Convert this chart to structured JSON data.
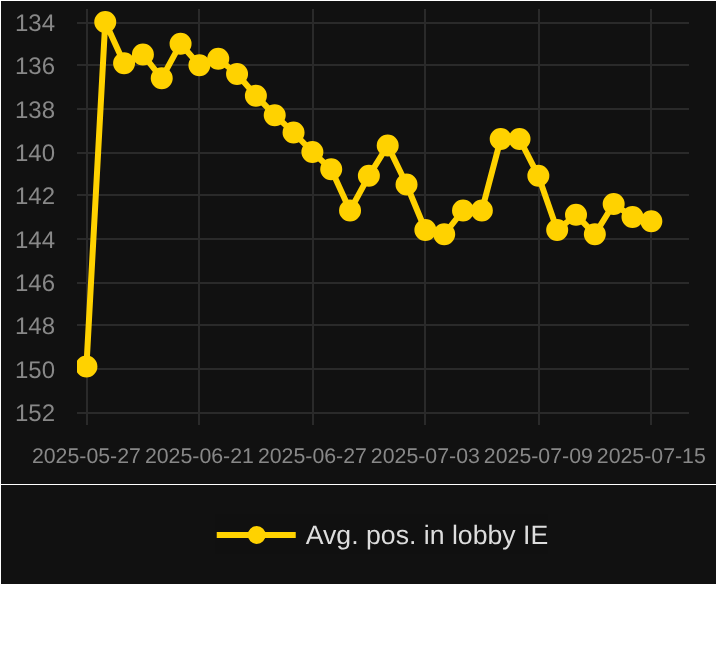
{
  "chart_data": {
    "type": "line",
    "categories": [
      "2025-05-27",
      null,
      null,
      null,
      null,
      null,
      "2025-06-21",
      null,
      null,
      null,
      null,
      null,
      "2025-06-27",
      null,
      null,
      null,
      null,
      null,
      "2025-07-03",
      null,
      null,
      null,
      null,
      null,
      "2025-07-09",
      null,
      null,
      null,
      null,
      null,
      "2025-07-15"
    ],
    "series": [
      {
        "name": "Avg. pos. in lobby IE",
        "color": "#ffd200",
        "values": [
          149.9,
          134.0,
          135.9,
          135.5,
          136.6,
          135.0,
          136.0,
          135.7,
          136.4,
          137.4,
          138.3,
          139.1,
          140.0,
          140.8,
          142.7,
          141.1,
          139.7,
          141.5,
          143.6,
          143.8,
          142.7,
          142.7,
          139.4,
          139.4,
          141.1,
          143.6,
          142.9,
          143.8,
          142.4,
          143.0,
          143.2
        ]
      }
    ],
    "ylim": [
      152.6,
      133.4
    ],
    "yticks": [
      134,
      136,
      138,
      140,
      142,
      144,
      146,
      148,
      150,
      152
    ],
    "grid": true,
    "legend": "bottom",
    "marker": "circle",
    "line_style": "solid"
  }
}
